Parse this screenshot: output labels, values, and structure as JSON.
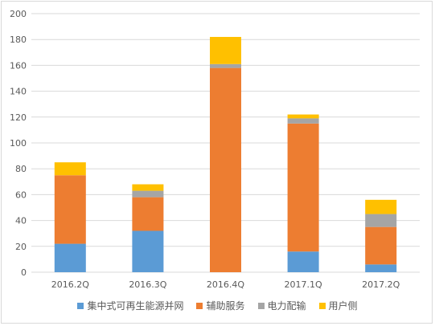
{
  "chart_data": {
    "type": "bar",
    "stacked": true,
    "categories": [
      "2016.2Q",
      "2016.3Q",
      "2016.4Q",
      "2017.1Q",
      "2017.2Q"
    ],
    "series": [
      {
        "name": "集中式可再生能源并网",
        "color": "#5b9bd5",
        "values": [
          22,
          32,
          0,
          16,
          6
        ]
      },
      {
        "name": "辅助服务",
        "color": "#ed7d31",
        "values": [
          53,
          26,
          158,
          99,
          29
        ]
      },
      {
        "name": "电力配输",
        "color": "#a5a5a5",
        "values": [
          0,
          5,
          3,
          4,
          10
        ]
      },
      {
        "name": "用户侧",
        "color": "#ffc000",
        "values": [
          10,
          5,
          21,
          3,
          11
        ]
      }
    ],
    "ylim": [
      0,
      200
    ],
    "yticks": [
      0,
      20,
      40,
      60,
      80,
      100,
      120,
      140,
      160,
      180,
      200
    ],
    "grid": true,
    "legend_position": "bottom"
  }
}
